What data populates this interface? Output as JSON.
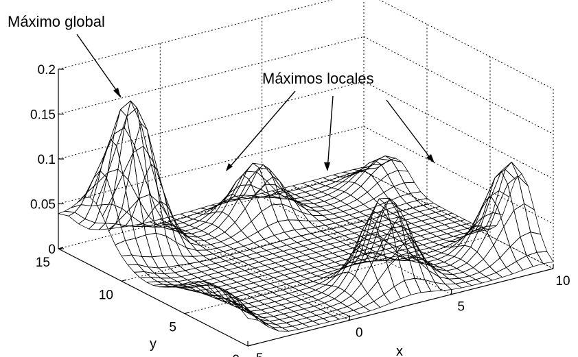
{
  "chart_data": {
    "type": "surface",
    "title": "",
    "xlabel": "x",
    "ylabel": "y",
    "zlabel": "",
    "xlim": [
      -5,
      10
    ],
    "ylim": [
      0,
      15
    ],
    "zlim": [
      0,
      0.2
    ],
    "grid": true,
    "x_ticks": [
      "-5",
      "0",
      "5",
      "10"
    ],
    "y_ticks": [
      "0",
      "5",
      "10",
      "15"
    ],
    "z_ticks": [
      "0",
      "0.05",
      "0.1",
      "0.15",
      "0.2"
    ],
    "x": [
      -5.0,
      -4.5,
      -4.0,
      -3.5,
      -3.0,
      -2.5,
      -2.0,
      -1.5,
      -1.0,
      -0.5,
      0.0,
      0.5,
      1.0,
      1.5,
      2.0,
      2.5,
      3.0,
      3.5,
      4.0,
      4.5,
      5.0,
      5.5,
      6.0,
      6.5,
      7.0,
      7.5,
      8.0,
      8.5,
      9.0,
      9.5,
      10.0
    ],
    "y": [
      0.0,
      0.5,
      1.0,
      1.5,
      2.0,
      2.5,
      3.0,
      3.5,
      4.0,
      4.5,
      5.0,
      5.5,
      6.0,
      6.5,
      7.0,
      7.5,
      8.0,
      8.5,
      9.0,
      9.5,
      10.0,
      10.5,
      11.0,
      11.5,
      12.0,
      12.5,
      13.0,
      13.5,
      14.0,
      14.5,
      15.0
    ],
    "peaks": [
      {
        "x": -3.1,
        "y": 12.3,
        "z": 0.17,
        "label": "Máximo global"
      },
      {
        "x": 3.2,
        "y": 2.3,
        "z": 0.1,
        "label": "Máximos locales"
      },
      {
        "x": 9.4,
        "y": 2.5,
        "z": 0.1,
        "label": "Máximos locales"
      },
      {
        "x": 3.1,
        "y": 12.3,
        "z": 0.065,
        "label": "Máximos locales"
      },
      {
        "x": 9.4,
        "y": 12.3,
        "z": 0.035
      }
    ]
  },
  "annotations": {
    "global_max": "Máximo global",
    "local_max": "Máximos locales"
  }
}
